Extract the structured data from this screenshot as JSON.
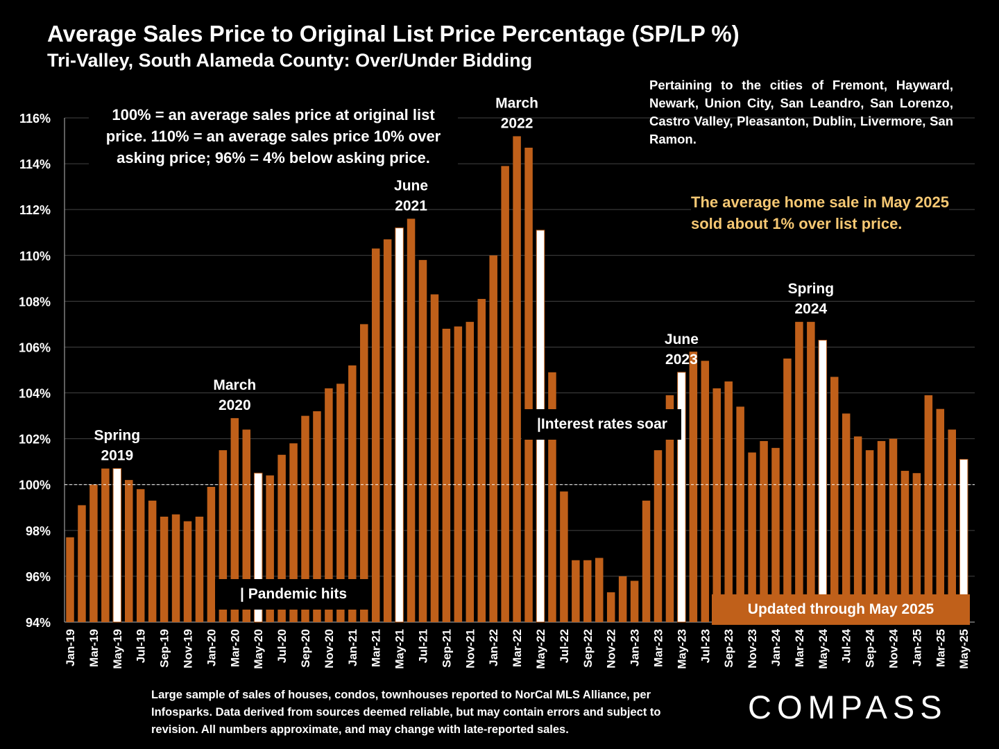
{
  "header": {
    "title": "Average Sales Price to Original List Price Percentage (SP/LP %)",
    "subtitle": "Tri-Valley, South Alameda County:  Over/Under Bidding"
  },
  "notes": {
    "cities": "Pertaining to the cities of Fremont, Hayward, Newark, Union City, San Leandro, San Lorenzo, Castro Valley, Pleasanton, Dublin, Livermore, San Ramon.",
    "explain": "100% = an average sales price at original list price. 110% = an average sales price 10% over asking price; 96% = 4% below asking price.",
    "highlight": "The average home sale in May 2025 sold about 1% over list price.",
    "pandemic": "| Pandemic hits",
    "rates": "|Interest rates soar",
    "updated": "Updated through May 2025",
    "footer": "Large sample of sales of houses, condos, townhouses reported to NorCal MLS Alliance, per Infosparks. Data derived from sources deemed reliable, but may contain errors and subject to revision. All numbers approximate, and may change with late-reported sales.",
    "logo": "COMPASS"
  },
  "colors": {
    "bar": "#c0601a",
    "highlight_bar": "#ffffff",
    "gold_text": "#f6c873",
    "background": "#000000"
  },
  "chart_data": {
    "type": "bar",
    "ylim": [
      94,
      116
    ],
    "y_ticks": [
      "94%",
      "96%",
      "98%",
      "100%",
      "102%",
      "104%",
      "106%",
      "108%",
      "110%",
      "112%",
      "114%",
      "116%"
    ],
    "reference_line": 100,
    "categories": [
      "Jan-19",
      "Feb-19",
      "Mar-19",
      "Apr-19",
      "May-19",
      "Jun-19",
      "Jul-19",
      "Aug-19",
      "Sep-19",
      "Oct-19",
      "Nov-19",
      "Dec-19",
      "Jan-20",
      "Feb-20",
      "Mar-20",
      "Apr-20",
      "May-20",
      "Jun-20",
      "Jul-20",
      "Aug-20",
      "Sep-20",
      "Oct-20",
      "Nov-20",
      "Dec-20",
      "Jan-21",
      "Feb-21",
      "Mar-21",
      "Apr-21",
      "May-21",
      "Jun-21",
      "Jul-21",
      "Aug-21",
      "Sep-21",
      "Oct-21",
      "Nov-21",
      "Dec-21",
      "Jan-22",
      "Feb-22",
      "Mar-22",
      "Apr-22",
      "May-22",
      "Jun-22",
      "Jul-22",
      "Aug-22",
      "Sep-22",
      "Oct-22",
      "Nov-22",
      "Dec-22",
      "Jan-23",
      "Feb-23",
      "Mar-23",
      "Apr-23",
      "May-23",
      "Jun-23",
      "Jul-23",
      "Aug-23",
      "Sep-23",
      "Oct-23",
      "Nov-23",
      "Dec-23",
      "Jan-24",
      "Feb-24",
      "Mar-24",
      "Apr-24",
      "May-24",
      "Jun-24",
      "Jul-24",
      "Aug-24",
      "Sep-24",
      "Oct-24",
      "Nov-24",
      "Dec-24",
      "Jan-25",
      "Feb-25",
      "Mar-25",
      "Apr-25",
      "May-25"
    ],
    "tick_labels_shown": [
      "Jan-19",
      "Mar-19",
      "May-19",
      "Jul-19",
      "Sep-19",
      "Nov-19",
      "Jan-20",
      "Mar-20",
      "May-20",
      "Jul-20",
      "Sep-20",
      "Nov-20",
      "Jan-21",
      "Mar-21",
      "May-21",
      "Jul-21",
      "Sep-21",
      "Nov-21",
      "Jan-22",
      "Mar-22",
      "May-22",
      "Jul-22",
      "Sep-22",
      "Nov-22",
      "Jan-23",
      "Mar-23",
      "May-23",
      "Jul-23",
      "Sep-23",
      "Nov-23",
      "Jan-24",
      "Mar-24",
      "May-24",
      "Jul-24",
      "Sep-24",
      "Nov-24",
      "Jan-25",
      "Mar-25",
      "May-25"
    ],
    "values": [
      97.7,
      99.1,
      100.0,
      100.7,
      100.7,
      100.2,
      99.8,
      99.3,
      98.6,
      98.7,
      98.4,
      98.6,
      99.9,
      101.5,
      102.9,
      102.4,
      100.5,
      100.4,
      101.3,
      101.8,
      103.0,
      103.2,
      104.2,
      104.4,
      105.2,
      107.0,
      110.3,
      110.7,
      111.2,
      111.6,
      109.8,
      108.3,
      106.8,
      106.9,
      107.1,
      108.1,
      110.0,
      113.9,
      115.2,
      114.7,
      111.1,
      104.9,
      99.7,
      96.7,
      96.7,
      96.8,
      95.3,
      96.0,
      95.8,
      99.3,
      101.5,
      103.9,
      104.9,
      105.8,
      105.4,
      104.2,
      104.5,
      103.4,
      101.4,
      101.9,
      101.6,
      105.5,
      107.1,
      107.1,
      106.3,
      104.7,
      103.1,
      102.1,
      101.5,
      101.9,
      102.0,
      100.6,
      100.5,
      103.9,
      103.3,
      102.4,
      101.1
    ],
    "highlight_categories": [
      "May-19",
      "May-20",
      "May-21",
      "May-22",
      "May-23",
      "May-24",
      "May-25"
    ],
    "annotations": [
      {
        "category": "May-19",
        "text": "Spring\n2019"
      },
      {
        "category": "Mar-20",
        "text": "March\n2020"
      },
      {
        "category": "Jun-21",
        "text": "June\n2021"
      },
      {
        "category": "Mar-22",
        "text": "March\n2022"
      },
      {
        "category": "May-23",
        "text": "June\n2023"
      },
      {
        "category": "Apr-24",
        "text": "Spring\n2024"
      }
    ]
  }
}
